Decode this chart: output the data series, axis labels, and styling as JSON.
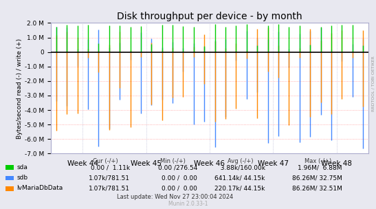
{
  "title": "Disk throughput per device - by month",
  "ylabel": "Bytes/second read (-) / write (+)",
  "right_label": "RRDTOOL / TOBI OETIKER",
  "ylim": [
    -7000000,
    2000000
  ],
  "yticks": [
    -7000000,
    -6000000,
    -5000000,
    -4000000,
    -3000000,
    -2000000,
    -1000000,
    0,
    1000000,
    2000000
  ],
  "ytick_labels": [
    "-7.0 M",
    "-6.0 M",
    "-5.0 M",
    "-4.0 M",
    "-3.0 M",
    "-2.0 M",
    "-1.0 M",
    "0",
    "1.0 M",
    "2.0 M"
  ],
  "week_labels": [
    "Week 44",
    "Week 45",
    "Week 46",
    "Week 47",
    "Week 48"
  ],
  "bg_color": "#e8e8f0",
  "plot_bg_color": "#ffffff",
  "grid_color": "#ff9999",
  "grid_color_x": "#aaaacc",
  "zero_line_color": "#000000",
  "colors": {
    "sda": "#00cc00",
    "sdb": "#4488ff",
    "lvMariaDbData": "#ff8800"
  },
  "legend": [
    {
      "label": "sda",
      "cur": "0.00 /  1.11k",
      "min": "0.00 /276.54",
      "avg": "  3.88k/160.00k",
      "max": "1.96M/  6.88M"
    },
    {
      "label": "sdb",
      "cur": "1.07k/781.51",
      "min": "0.00 /  0.00",
      "avg": "641.14k/ 44.15k",
      "max": "86.26M/ 32.75M"
    },
    {
      "label": "lvMariaDbData",
      "cur": "1.07k/781.51",
      "min": "0.00 /  0.00",
      "avg": "220.17k/ 44.15k",
      "max": "86.26M/ 32.51M"
    }
  ],
  "footer": "Last update: Wed Nov 27 23:00:04 2024",
  "munin_version": "Munin 2.0.33-1"
}
